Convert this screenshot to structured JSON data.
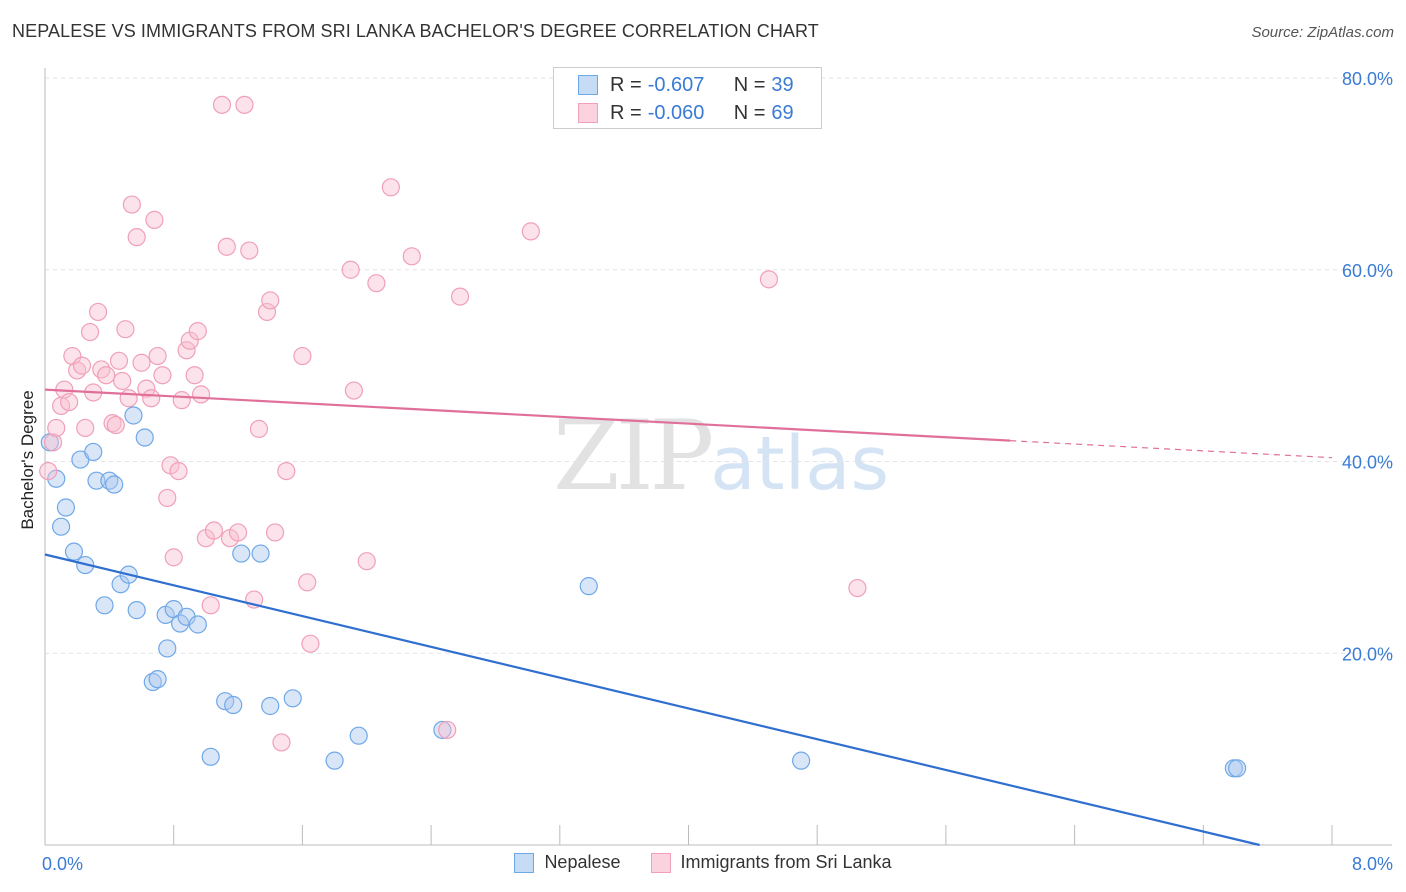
{
  "title": "NEPALESE VS IMMIGRANTS FROM SRI LANKA BACHELOR'S DEGREE CORRELATION CHART",
  "source": "Source: ZipAtlas.com",
  "watermark": {
    "part1": "ZIP",
    "part2": "atlas"
  },
  "legend_top": {
    "rows": [
      {
        "r_label": "R =",
        "r_value": "-0.607",
        "n_label": "N =",
        "n_value": "39",
        "color": "#6fa8e8"
      },
      {
        "r_label": "R =",
        "r_value": "-0.060",
        "n_label": "N =",
        "n_value": "69",
        "color": "#f0a0b8"
      }
    ]
  },
  "legend_bottom": {
    "items": [
      {
        "label": "Nepalese",
        "color": "#6fa8e8"
      },
      {
        "label": "Immigrants from Sri Lanka",
        "color": "#f0a0b8"
      }
    ]
  },
  "chart_data": {
    "type": "scatter",
    "title": "NEPALESE VS IMMIGRANTS FROM SRI LANKA BACHELOR'S DEGREE CORRELATION CHART",
    "xlabel": "",
    "ylabel": "Bachelor's Degree",
    "xlim": [
      0,
      8
    ],
    "ylim": [
      0,
      80
    ],
    "x_tick_labels": [
      "0.0%",
      "8.0%"
    ],
    "y_tick_labels": [
      "20.0%",
      "40.0%",
      "60.0%",
      "80.0%"
    ],
    "y_ticks": [
      20,
      40,
      60,
      80
    ],
    "grid": true,
    "legend_position": "top-center",
    "series": [
      {
        "name": "Nepalese",
        "color": "#6fa8e8",
        "line_color": "#2f6fd0",
        "trend": {
          "x_start": 0,
          "y_start": 30.3,
          "x_end": 7.55,
          "y_end": 0,
          "dashed_from": null
        },
        "points": [
          [
            0.03,
            42.0
          ],
          [
            0.07,
            38.2
          ],
          [
            0.1,
            33.2
          ],
          [
            0.13,
            35.2
          ],
          [
            0.18,
            30.6
          ],
          [
            0.22,
            40.2
          ],
          [
            0.25,
            29.2
          ],
          [
            0.3,
            41.0
          ],
          [
            0.32,
            38.0
          ],
          [
            0.37,
            25.0
          ],
          [
            0.4,
            38.0
          ],
          [
            0.43,
            37.6
          ],
          [
            0.47,
            27.2
          ],
          [
            0.52,
            28.2
          ],
          [
            0.55,
            44.8
          ],
          [
            0.57,
            24.5
          ],
          [
            0.62,
            42.5
          ],
          [
            0.67,
            17.0
          ],
          [
            0.7,
            17.3
          ],
          [
            0.75,
            24.0
          ],
          [
            0.76,
            20.5
          ],
          [
            0.8,
            24.6
          ],
          [
            0.84,
            23.1
          ],
          [
            0.88,
            23.8
          ],
          [
            0.95,
            23.0
          ],
          [
            1.03,
            9.2
          ],
          [
            1.12,
            15.0
          ],
          [
            1.17,
            14.6
          ],
          [
            1.22,
            30.4
          ],
          [
            1.34,
            30.4
          ],
          [
            1.4,
            14.5
          ],
          [
            1.54,
            15.3
          ],
          [
            1.8,
            8.8
          ],
          [
            1.95,
            11.4
          ],
          [
            2.47,
            12.0
          ],
          [
            3.38,
            27.0
          ],
          [
            4.7,
            8.8
          ],
          [
            7.39,
            8.0
          ],
          [
            7.41,
            8.0
          ]
        ]
      },
      {
        "name": "Immigrants from Sri Lanka",
        "color": "#f0a0b8",
        "line_color": "#e0709a",
        "trend": {
          "x_start": 0,
          "y_start": 47.5,
          "x_end": 8.0,
          "y_end": 40.4,
          "dashed_from": 6.0
        },
        "points": [
          [
            0.02,
            39.0
          ],
          [
            0.05,
            42.0
          ],
          [
            0.07,
            43.5
          ],
          [
            0.1,
            45.8
          ],
          [
            0.12,
            47.5
          ],
          [
            0.15,
            46.2
          ],
          [
            0.17,
            51.0
          ],
          [
            0.2,
            49.5
          ],
          [
            0.23,
            50.0
          ],
          [
            0.25,
            43.5
          ],
          [
            0.28,
            53.5
          ],
          [
            0.3,
            47.2
          ],
          [
            0.33,
            55.6
          ],
          [
            0.35,
            49.6
          ],
          [
            0.38,
            49.0
          ],
          [
            0.42,
            44.0
          ],
          [
            0.44,
            43.8
          ],
          [
            0.46,
            50.5
          ],
          [
            0.48,
            48.4
          ],
          [
            0.5,
            53.8
          ],
          [
            0.52,
            46.6
          ],
          [
            0.54,
            66.8
          ],
          [
            0.57,
            63.4
          ],
          [
            0.6,
            50.3
          ],
          [
            0.63,
            47.6
          ],
          [
            0.66,
            46.6
          ],
          [
            0.68,
            65.2
          ],
          [
            0.7,
            51.0
          ],
          [
            0.73,
            49.0
          ],
          [
            0.76,
            36.2
          ],
          [
            0.78,
            39.6
          ],
          [
            0.8,
            30.0
          ],
          [
            0.83,
            39.0
          ],
          [
            0.85,
            46.4
          ],
          [
            0.88,
            51.6
          ],
          [
            0.9,
            52.6
          ],
          [
            0.93,
            49.0
          ],
          [
            0.95,
            53.6
          ],
          [
            0.97,
            47.0
          ],
          [
            1.0,
            32.0
          ],
          [
            1.03,
            25.0
          ],
          [
            1.05,
            32.8
          ],
          [
            1.1,
            77.2
          ],
          [
            1.13,
            62.4
          ],
          [
            1.15,
            32.0
          ],
          [
            1.2,
            32.6
          ],
          [
            1.24,
            77.2
          ],
          [
            1.27,
            62.0
          ],
          [
            1.3,
            25.6
          ],
          [
            1.33,
            43.4
          ],
          [
            1.38,
            55.6
          ],
          [
            1.4,
            56.8
          ],
          [
            1.43,
            32.6
          ],
          [
            1.47,
            10.7
          ],
          [
            1.5,
            39.0
          ],
          [
            1.6,
            51.0
          ],
          [
            1.63,
            27.4
          ],
          [
            1.65,
            21.0
          ],
          [
            1.9,
            60.0
          ],
          [
            1.92,
            47.4
          ],
          [
            2.0,
            29.6
          ],
          [
            2.06,
            58.6
          ],
          [
            2.15,
            68.6
          ],
          [
            2.28,
            61.4
          ],
          [
            2.5,
            12.0
          ],
          [
            2.58,
            57.2
          ],
          [
            3.02,
            64.0
          ],
          [
            4.5,
            59.0
          ],
          [
            5.05,
            26.8
          ]
        ]
      }
    ]
  }
}
